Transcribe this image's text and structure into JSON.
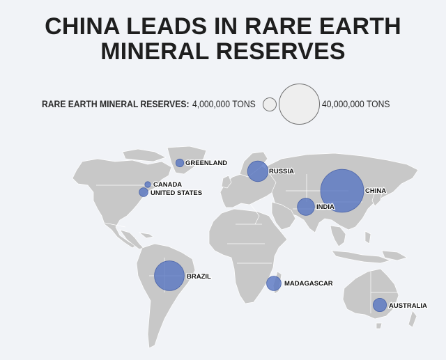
{
  "title": {
    "line1": "CHINA LEADS IN RARE EARTH",
    "line2": "MINERAL RESERVES"
  },
  "legend": {
    "label": "RARE EARTH MINERAL RESERVES:",
    "small_label": "4,000,000 TONS",
    "large_label": "40,000,000 TONS",
    "small_value_tons": 4000000,
    "large_value_tons": 40000000
  },
  "colors": {
    "bubble": "#5a77c2",
    "land": "#c8c8c8",
    "background": "#f1f3f7"
  },
  "countries": [
    {
      "name": "GREENLAND",
      "label": "GREENLAND",
      "reserves_tons": 1500000
    },
    {
      "name": "CANADA",
      "label": "CANADA",
      "reserves_tons": 830000
    },
    {
      "name": "UNITED STATES",
      "label": "UNITED STATES",
      "reserves_tons": 1800000
    },
    {
      "name": "RUSSIA",
      "label": "RUSSIA",
      "reserves_tons": 10000000
    },
    {
      "name": "CHINA",
      "label": "CHINA",
      "reserves_tons": 44000000
    },
    {
      "name": "INDIA",
      "label": "INDIA",
      "reserves_tons": 6900000
    },
    {
      "name": "BRAZIL",
      "label": "BRAZIL",
      "reserves_tons": 21000000
    },
    {
      "name": "MADAGASCAR",
      "label": "MADAGASCAR",
      "reserves_tons": 5000000
    },
    {
      "name": "AUSTRALIA",
      "label": "AUSTRALIA",
      "reserves_tons": 4200000
    }
  ]
}
